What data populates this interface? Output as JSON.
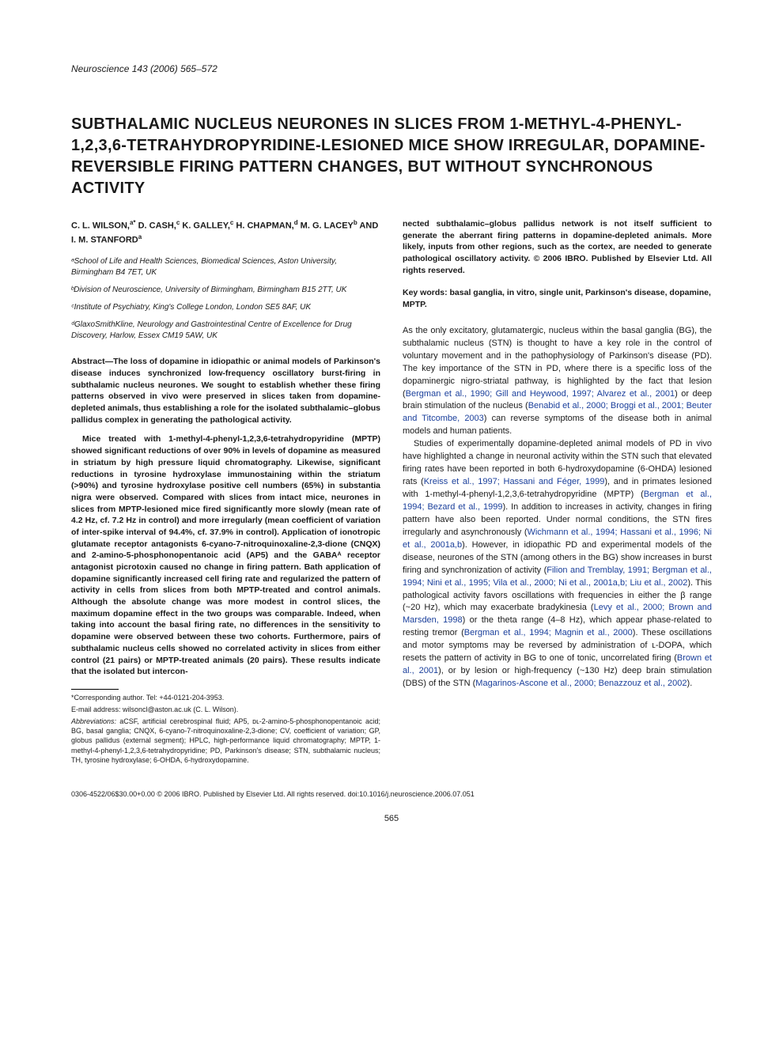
{
  "journal_header": "Neuroscience 143 (2006) 565–572",
  "title": "SUBTHALAMIC NUCLEUS NEURONES IN SLICES FROM 1-METHYL-4-PHENYL-1,2,3,6-TETRAHYDROPYRIDINE-LESIONED MICE SHOW IRREGULAR, DOPAMINE-REVERSIBLE FIRING PATTERN CHANGES, BUT WITHOUT SYNCHRONOUS ACTIVITY",
  "authors_html": "C. L. WILSON,<span class='sup'>a*</span> D. CASH,<span class='sup'>c</span> K. GALLEY,<span class='sup'>c</span> H. CHAPMAN,<span class='sup'>d</span> M. G. LACEY<span class='sup'>b</span> AND I. M. STANFORD<span class='sup'>a</span>",
  "affiliations": [
    "ᵃSchool of Life and Health Sciences, Biomedical Sciences, Aston University, Birmingham B4 7ET, UK",
    "ᵇDivision of Neuroscience, University of Birmingham, Birmingham B15 2TT, UK",
    "ᶜInstitute of Psychiatry, King's College London, London SE5 8AF, UK",
    "ᵈGlaxoSmithKline, Neurology and Gastrointestinal Centre of Excellence for Drug Discovery, Harlow, Essex CM19 5AW, UK"
  ],
  "abstract_p1": "Abstract—The loss of dopamine in idiopathic or animal models of Parkinson's disease induces synchronized low-frequency oscillatory burst-firing in subthalamic nucleus neurones. We sought to establish whether these firing patterns observed in vivo were preserved in slices taken from dopamine-depleted animals, thus establishing a role for the isolated subthalamic–globus pallidus complex in generating the pathological activity.",
  "abstract_p2": "Mice treated with 1-methyl-4-phenyl-1,2,3,6-tetrahydropyridine (MPTP) showed significant reductions of over 90% in levels of dopamine as measured in striatum by high pressure liquid chromatography. Likewise, significant reductions in tyrosine hydroxylase immunostaining within the striatum (>90%) and tyrosine hydroxylase positive cell numbers (65%) in substantia nigra were observed. Compared with slices from intact mice, neurones in slices from MPTP-lesioned mice fired significantly more slowly (mean rate of 4.2 Hz, cf. 7.2 Hz in control) and more irregularly (mean coefficient of variation of inter-spike interval of 94.4%, cf. 37.9% in control). Application of ionotropic glutamate receptor antagonists 6-cyano-7-nitroquinoxaline-2,3-dione (CNQX) and 2-amino-5-phosphonopentanoic acid (AP5) and the GABAᴬ receptor antagonist picrotoxin caused no change in firing pattern. Bath application of dopamine significantly increased cell firing rate and regularized the pattern of activity in cells from slices from both MPTP-treated and control animals. Although the absolute change was more modest in control slices, the maximum dopamine effect in the two groups was comparable. Indeed, when taking into account the basal firing rate, no differences in the sensitivity to dopamine were observed between these two cohorts. Furthermore, pairs of subthalamic nucleus cells showed no correlated activity in slices from either control (21 pairs) or MPTP-treated animals (20 pairs). These results indicate that the isolated but intercon-",
  "corresponding": "*Corresponding author. Tel: +44-0121-204-3953.",
  "email": "E-mail address: wilsoncl@aston.ac.uk (C. L. Wilson).",
  "abbrev_label": "Abbreviations:",
  "abbrev_text": " aCSF, artificial cerebrospinal fluid; AP5, ᴅʟ-2-amino-5-phosphonopentanoic acid; BG, basal ganglia; CNQX, 6-cyano-7-nitroquinoxaline-2,3-dione; CV, coefficient of variation; GP, globus pallidus (external segment); HPLC, high-performance liquid chromatography; MPTP, 1-methyl-4-phenyl-1,2,3,6-tetrahydropyridine; PD, Parkinson's disease; STN, subthalamic nucleus; TH, tyrosine hydroxylase; 6-OHDA, 6-hydroxydopamine.",
  "cont_abstract": "nected subthalamic–globus pallidus network is not itself sufficient to generate the aberrant firing patterns in dopamine-depleted animals. More likely, inputs from other regions, such as the cortex, are needed to generate pathological oscillatory activity. © 2006 IBRO. Published by Elsevier Ltd. All rights reserved.",
  "keywords": "Key words: basal ganglia, in vitro, single unit, Parkinson's disease, dopamine, MPTP.",
  "body_p1_pre": "As the only excitatory, glutamatergic, nucleus within the basal ganglia (BG), the subthalamic nucleus (STN) is thought to have a key role in the control of voluntary movement and in the pathophysiology of Parkinson's disease (PD). The key importance of the STN in PD, where there is a specific loss of the dopaminergic nigro-striatal pathway, is highlighted by the fact that lesion (",
  "cite1": "Bergman et al., 1990; Gill and Heywood, 1997; Alvarez et al., 2001",
  "body_p1_mid1": ") or deep brain stimulation of the nucleus (",
  "cite2": "Benabid et al., 2000; Broggi et al., 2001; Beuter and Titcombe, 2003",
  "body_p1_end": ") can reverse symptoms of the disease both in animal models and human patients.",
  "body_p2_pre": "Studies of experimentally dopamine-depleted animal models of PD in vivo have highlighted a change in neuronal activity within the STN such that elevated firing rates have been reported in both 6-hydroxydopamine (6-OHDA) lesioned rats (",
  "cite3": "Kreiss et al., 1997; Hassani and Féger, 1999",
  "body_p2_mid1": "), and in primates lesioned with 1-methyl-4-phenyl-1,2,3,6-tetrahydropyridine (MPTP) (",
  "cite4": "Bergman et al., 1994; Bezard et al., 1999",
  "body_p2_mid2": "). In addition to increases in activity, changes in firing pattern have also been reported. Under normal conditions, the STN fires irregularly and asynchronously (",
  "cite5": "Wichmann et al., 1994; Hassani et al., 1996; Ni et al., 2001a,b",
  "body_p2_mid3": "). However, in idiopathic PD and experimental models of the disease, neurones of the STN (among others in the BG) show increases in burst firing and synchronization of activity (",
  "cite6": "Filion and Tremblay, 1991; Bergman et al., 1994; Nini et al., 1995; Vila et al., 2000; Ni et al., 2001a,b; Liu et al., 2002",
  "body_p2_mid4": "). This pathological activity favors oscillations with frequencies in either the β range (~20 Hz), which may exacerbate bradykinesia (",
  "cite7": "Levy et al., 2000; Brown and Marsden, 1998",
  "body_p2_mid5": ") or the theta range (4–8 Hz), which appear phase-related to resting tremor (",
  "cite8": "Bergman et al., 1994; Magnin et al., 2000",
  "body_p2_mid6": "). These oscillations and motor symptoms may be reversed by administration of ʟ-DOPA, which resets the pattern of activity in BG to one of tonic, uncorrelated firing (",
  "cite9": "Brown et al., 2001",
  "body_p2_mid7": "), or by lesion or high-frequency (~130 Hz) deep brain stimulation (DBS) of the STN (",
  "cite10": "Magarinos-Ascone et al., 2000; Benazzouz et al., 2002",
  "body_p2_end": ").",
  "copyright": "0306-4522/06$30.00+0.00 © 2006 IBRO. Published by Elsevier Ltd. All rights reserved. doi:10.1016/j.neuroscience.2006.07.051",
  "page_number": "565",
  "colors": {
    "text": "#1a1a1a",
    "link": "#1a3f9b",
    "background": "#ffffff"
  }
}
